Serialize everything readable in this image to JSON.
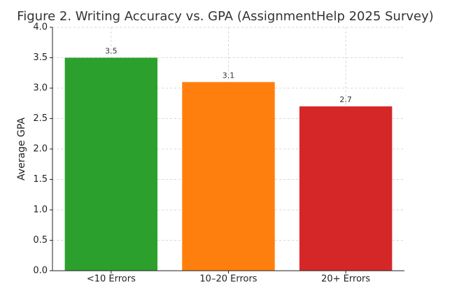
{
  "chart_data": {
    "type": "bar",
    "title": "Figure 2. Writing Accuracy vs. GPA (AssignmentHelp 2025 Survey)",
    "y_label": "Average GPA",
    "categories": [
      "<10 Errors",
      "10–20 Errors",
      "20+ Errors"
    ],
    "values": [
      3.5,
      3.1,
      2.7
    ],
    "colors": [
      "#2ca02c",
      "#ff7f0e",
      "#d62728"
    ],
    "ylim": [
      0,
      4
    ],
    "yticks": [
      {
        "value": 0,
        "label": "0.0"
      },
      {
        "value": 0.5,
        "label": "0.5"
      },
      {
        "value": 1,
        "label": "1.0"
      },
      {
        "value": 1.5,
        "label": "1.5"
      },
      {
        "value": 2,
        "label": "2.0"
      },
      {
        "value": 2.5,
        "label": "2.5"
      },
      {
        "value": 3,
        "label": "3.0"
      },
      {
        "value": 3.5,
        "label": "3.5"
      },
      {
        "value": 4,
        "label": "4.0"
      }
    ],
    "grid": true
  }
}
